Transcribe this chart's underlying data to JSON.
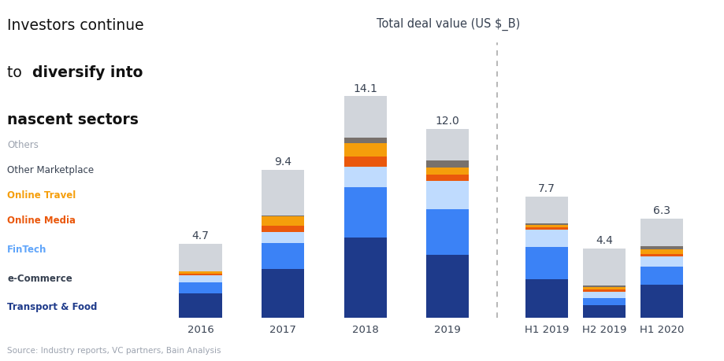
{
  "categories": [
    "2016",
    "2017",
    "2018",
    "2019",
    "H1 2019",
    "H2 2019",
    "H1 2020"
  ],
  "totals": [
    "4.7",
    "9.4",
    "14.1",
    "12.0",
    "7.7",
    "4.4",
    "6.3"
  ],
  "totals_num": [
    4.7,
    9.4,
    14.1,
    12.0,
    7.7,
    4.4,
    6.3
  ],
  "segments_order": [
    "Transport & Food",
    "e-Commerce",
    "FinTech",
    "Online Media",
    "Online Travel",
    "Other Marketplace",
    "Others"
  ],
  "segments": {
    "Transport & Food": [
      1.55,
      3.1,
      5.1,
      4.0,
      2.45,
      0.8,
      2.1
    ],
    "e-Commerce": [
      0.7,
      1.65,
      3.2,
      2.9,
      2.05,
      0.45,
      1.15
    ],
    "FinTech": [
      0.42,
      0.7,
      1.3,
      1.8,
      1.1,
      0.38,
      0.65
    ],
    "Online Media": [
      0.1,
      0.42,
      0.65,
      0.38,
      0.14,
      0.15,
      0.14
    ],
    "Online Travel": [
      0.15,
      0.6,
      0.85,
      0.48,
      0.17,
      0.17,
      0.32
    ],
    "Other Marketplace": [
      0.0,
      0.03,
      0.35,
      0.44,
      0.09,
      0.08,
      0.19
    ],
    "Others": [
      1.78,
      2.9,
      2.65,
      2.0,
      1.7,
      2.37,
      1.75
    ]
  },
  "colors": {
    "Transport & Food": "#1e3a8a",
    "e-Commerce": "#3b82f6",
    "FinTech": "#bfdbfe",
    "Online Media": "#ea580c",
    "Online Travel": "#f59e0b",
    "Other Marketplace": "#78716c",
    "Others": "#d1d5db"
  },
  "legend_items": [
    {
      "label": "Others",
      "color": "#9ca3af",
      "bold": false
    },
    {
      "label": "Other Marketplace",
      "color": "#374151",
      "bold": false
    },
    {
      "label": "Online Travel",
      "color": "#f59e0b",
      "bold": true
    },
    {
      "label": "Online Media",
      "color": "#ea580c",
      "bold": true
    },
    {
      "label": "FinTech",
      "color": "#60a5fa",
      "bold": true
    },
    {
      "label": "e-Commerce",
      "color": "#374151",
      "bold": true
    },
    {
      "label": "Transport & Food",
      "color": "#1e3a8a",
      "bold": true
    }
  ],
  "subtitle": "Total deal value (US $_B)",
  "source": "Source: Industry reports, VC partners, Bain Analysis",
  "background": "#ffffff",
  "bar_width": 0.52,
  "ylim": [
    0,
    17.5
  ]
}
